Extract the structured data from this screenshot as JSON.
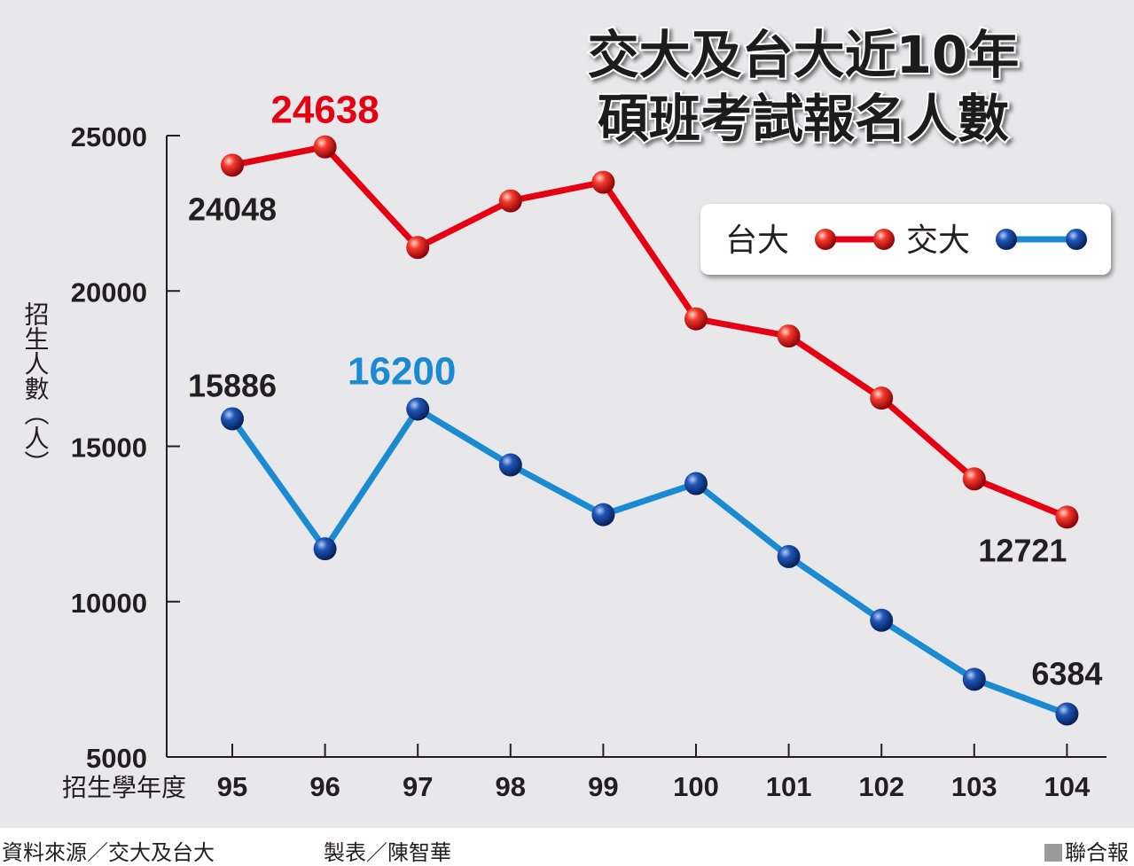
{
  "chart_data": {
    "type": "line",
    "title_lines": [
      "交大及台大近10年",
      "碩班考試報名人數"
    ],
    "ylabel": "招生人數（人）",
    "xlabel": "招生學年度",
    "categories": [
      "95",
      "96",
      "97",
      "98",
      "99",
      "100",
      "101",
      "102",
      "103",
      "104"
    ],
    "yticks": [
      "25000",
      "20000",
      "15000",
      "10000",
      "5000"
    ],
    "ylim": [
      5000,
      25000
    ],
    "series": [
      {
        "name": "台大",
        "color": "#e50012",
        "values": [
          24048,
          24638,
          21400,
          22900,
          23500,
          19100,
          18550,
          16550,
          13950,
          12721
        ]
      },
      {
        "name": "交大",
        "color": "#1a8ad2",
        "values": [
          15886,
          11700,
          16200,
          14400,
          12800,
          13800,
          11450,
          9400,
          7500,
          6384
        ]
      }
    ],
    "annotations": [
      {
        "label": "24048",
        "series": 0,
        "index": 0,
        "color": "#231f20"
      },
      {
        "label": "24638",
        "series": 0,
        "index": 1,
        "color": "#e50012"
      },
      {
        "label": "12721",
        "series": 0,
        "index": 9,
        "color": "#231f20"
      },
      {
        "label": "15886",
        "series": 1,
        "index": 0,
        "color": "#231f20"
      },
      {
        "label": "16200",
        "series": 1,
        "index": 2,
        "color": "#1a8ad2"
      },
      {
        "label": "6384",
        "series": 1,
        "index": 9,
        "color": "#231f20"
      }
    ],
    "legend": [
      "台大",
      "交大"
    ]
  },
  "footer": {
    "source": "資料來源／交大及台大",
    "made_by": "製表／陳智華",
    "brand": "聯合報"
  }
}
